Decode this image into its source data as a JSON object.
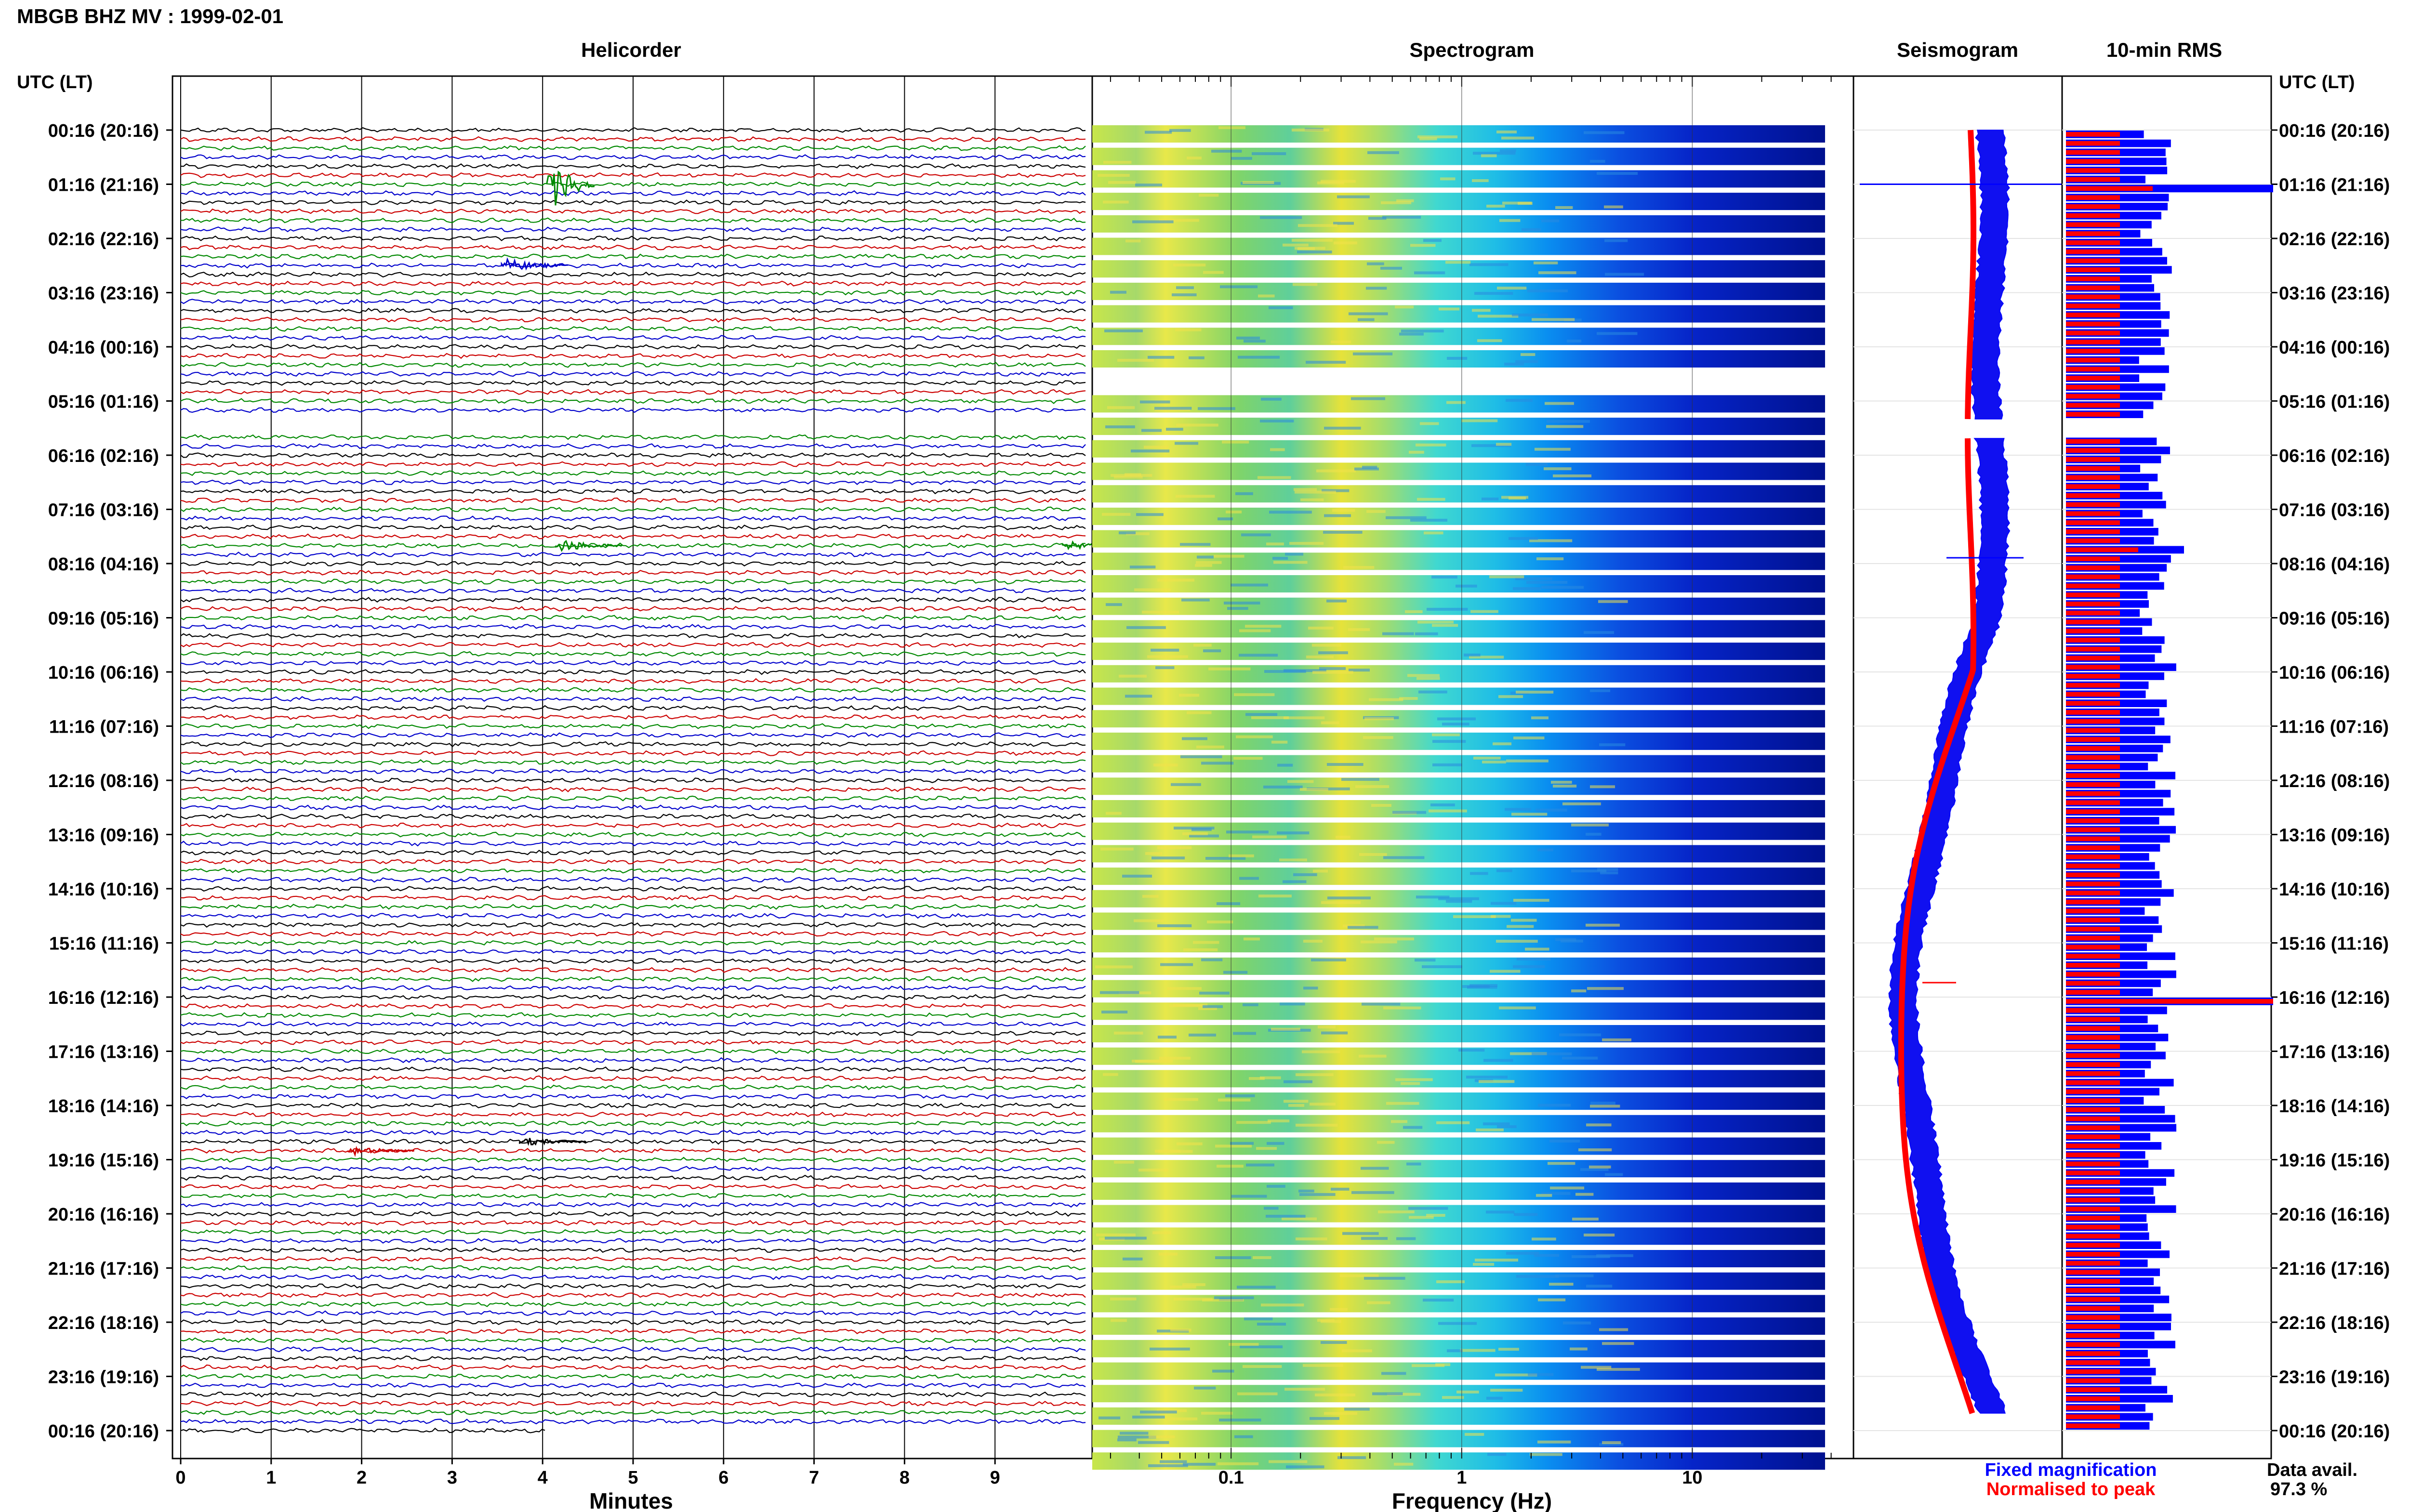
{
  "header": {
    "title": "MBGB BHZ MV : 1999-02-01",
    "utc_label_left": "UTC (LT)",
    "utc_label_right": "UTC (LT)"
  },
  "panels": {
    "helicorder": "Helicorder",
    "spectrogram": "Spectrogram",
    "seismogram": "Seismogram",
    "rms": "10-min RMS"
  },
  "time_labels": [
    "00:16 (20:16)",
    "01:16 (21:16)",
    "02:16 (22:16)",
    "03:16 (23:16)",
    "04:16 (00:16)",
    "05:16 (01:16)",
    "06:16 (02:16)",
    "07:16 (03:16)",
    "08:16 (04:16)",
    "09:16 (05:16)",
    "10:16 (06:16)",
    "11:16 (07:16)",
    "12:16 (08:16)",
    "13:16 (09:16)",
    "14:16 (10:16)",
    "15:16 (11:16)",
    "16:16 (12:16)",
    "17:16 (13:16)",
    "18:16 (14:16)",
    "19:16 (15:16)",
    "20:16 (16:16)",
    "21:16 (17:16)",
    "22:16 (18:16)",
    "23:16 (19:16)",
    "00:16 (20:16)"
  ],
  "legend": {
    "fixed": "Fixed magnification",
    "normalised": "Normalised to peak",
    "fixed_color": "#0000ff",
    "normalised_color": "#ff0000"
  },
  "data_avail": {
    "label": "Data avail.",
    "value": "97.3 %"
  },
  "chart_data": [
    {
      "type": "line",
      "panel": "Helicorder",
      "xlabel": "Minutes",
      "x_ticks": [
        "0",
        "1",
        "2",
        "3",
        "4",
        "5",
        "6",
        "7",
        "8",
        "9"
      ],
      "xlim": [
        0,
        10
      ],
      "rows_per_hour": 6,
      "trace_colors": [
        "#000000",
        "#cc0000",
        "#008800",
        "#0000cc"
      ],
      "gap_rows": [
        32,
        33
      ],
      "events": [
        {
          "row": 6,
          "minute": 4.1,
          "amplitude": "large"
        },
        {
          "row": 15,
          "minute": 3.6,
          "amplitude": "medium"
        },
        {
          "row": 46,
          "minute": 4.2,
          "amplitude": "medium"
        },
        {
          "row": 46,
          "minute": 9.8,
          "amplitude": "small"
        },
        {
          "row": 113,
          "minute": 1.9,
          "amplitude": "small"
        },
        {
          "row": 112,
          "minute": 3.8,
          "amplitude": "small"
        }
      ]
    },
    {
      "type": "heatmap",
      "panel": "Spectrogram",
      "xlabel": "Frequency (Hz)",
      "x_scale": "log",
      "xlim": [
        0.025,
        50
      ],
      "x_ticks": [
        "0.1",
        "1",
        "10"
      ],
      "rows": 60,
      "gap_rows": [
        11
      ]
    },
    {
      "type": "line",
      "panel": "Seismogram",
      "series": [
        {
          "name": "Fixed magnification",
          "color": "#0000ff"
        },
        {
          "name": "Normalised to peak",
          "color": "#ff0000"
        }
      ]
    },
    {
      "type": "bar",
      "panel": "10-min RMS",
      "series": [
        {
          "name": "Normalised to peak",
          "color": "#ff0000"
        },
        {
          "name": "Fixed magnification",
          "color": "#0000ff"
        }
      ]
    }
  ]
}
